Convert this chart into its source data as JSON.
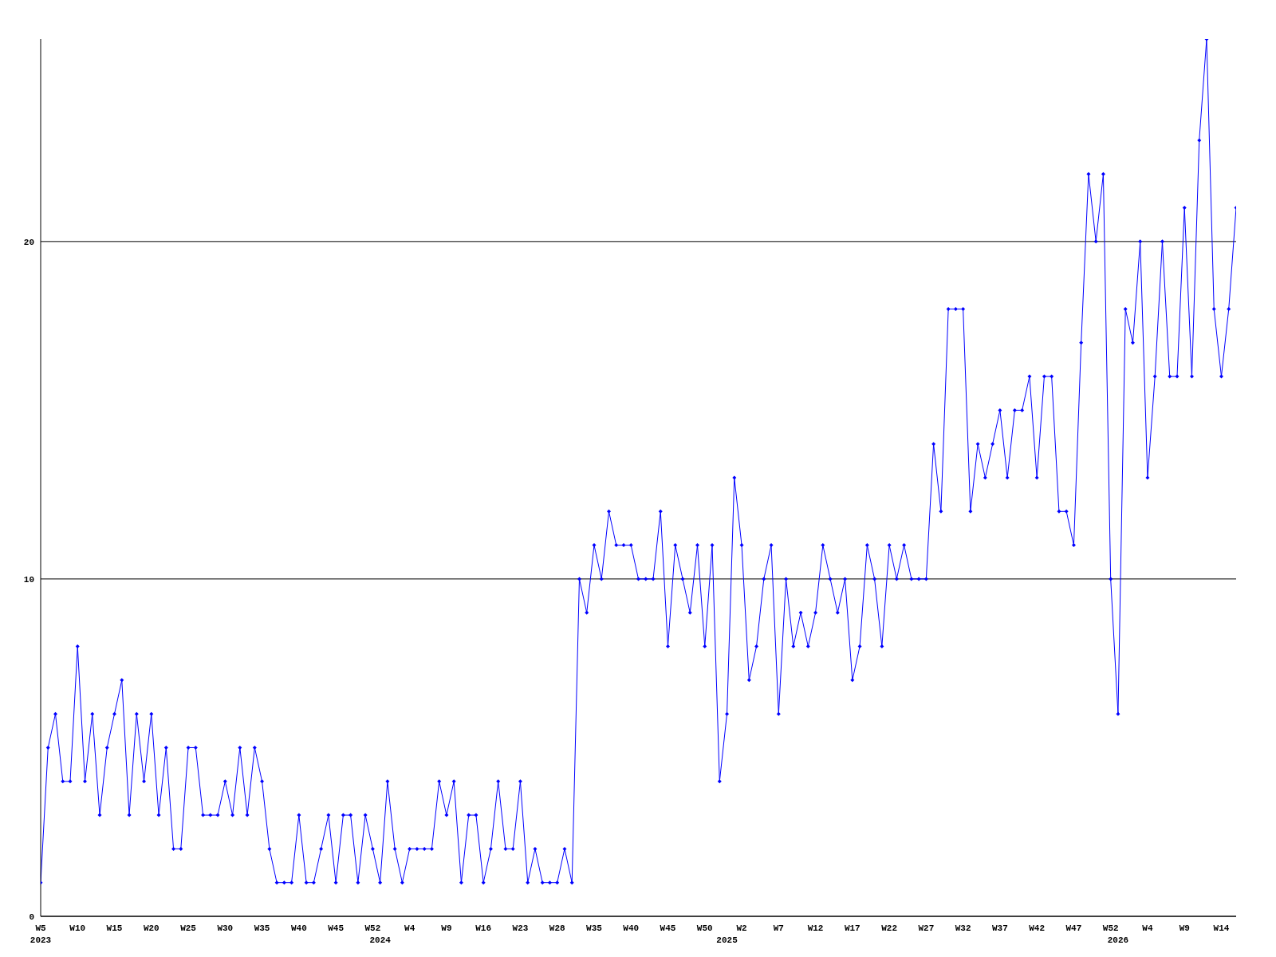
{
  "chart_data": {
    "type": "line",
    "categories": [
      "W5\n2023",
      null,
      null,
      null,
      null,
      "W10",
      null,
      null,
      null,
      null,
      "W15",
      null,
      null,
      null,
      null,
      "W20",
      null,
      null,
      null,
      null,
      "W25",
      null,
      null,
      null,
      null,
      "W30",
      null,
      null,
      null,
      null,
      "W35",
      null,
      null,
      null,
      null,
      "W40",
      null,
      null,
      null,
      null,
      "W45",
      null,
      null,
      null,
      null,
      "W52",
      "\n2024",
      null,
      null,
      null,
      "W4",
      null,
      null,
      null,
      null,
      "W9",
      null,
      null,
      null,
      null,
      "W16",
      null,
      null,
      null,
      null,
      "W23",
      null,
      null,
      null,
      null,
      "W28",
      null,
      null,
      null,
      null,
      "W35",
      null,
      null,
      null,
      null,
      "W40",
      null,
      null,
      null,
      null,
      "W45",
      null,
      null,
      null,
      null,
      "W50",
      null,
      null,
      "\n2025",
      null,
      "W2",
      null,
      null,
      null,
      null,
      "W7",
      null,
      null,
      null,
      null,
      "W12",
      null,
      null,
      null,
      null,
      "W17",
      null,
      null,
      null,
      null,
      "W22",
      null,
      null,
      null,
      null,
      "W27",
      null,
      null,
      null,
      null,
      "W32",
      null,
      null,
      null,
      null,
      "W37",
      null,
      null,
      null,
      null,
      "W42",
      null,
      null,
      null,
      null,
      "W47",
      null,
      null,
      null,
      null,
      "W52",
      "\n2026",
      null,
      null,
      null,
      "W4",
      null,
      null,
      null,
      null,
      "W9",
      null,
      null,
      null,
      null,
      "W14",
      null,
      null
    ],
    "series": [
      {
        "color": "#0000ff",
        "values": [
          1,
          5,
          6,
          4,
          4,
          8,
          4,
          6,
          3,
          5,
          6,
          7,
          3,
          6,
          4,
          6,
          3,
          5,
          2,
          2,
          5,
          5,
          3,
          3,
          3,
          4,
          3,
          5,
          3,
          5,
          4,
          2,
          1,
          1,
          1,
          3,
          1,
          1,
          2,
          3,
          1,
          3,
          3,
          1,
          3,
          2,
          1,
          4,
          2,
          1,
          2,
          2,
          2,
          2,
          4,
          3,
          4,
          1,
          3,
          3,
          1,
          2,
          4,
          2,
          2,
          4,
          1,
          2,
          1,
          1,
          1,
          2,
          1,
          10,
          9,
          11,
          10,
          12,
          11,
          11,
          11,
          10,
          10,
          10,
          12,
          8,
          11,
          10,
          9,
          11,
          8,
          11,
          4,
          6,
          13,
          11,
          7,
          8,
          10,
          11,
          6,
          10,
          8,
          9,
          8,
          9,
          11,
          10,
          9,
          10,
          7,
          8,
          11,
          10,
          8,
          11,
          10,
          11,
          10,
          10,
          10,
          14,
          12,
          18,
          18,
          18,
          12,
          14,
          13,
          14,
          15,
          13,
          15,
          15,
          16,
          13,
          16,
          16,
          12,
          12,
          11,
          17,
          22,
          20,
          22,
          10,
          6,
          18,
          17,
          20,
          13,
          16,
          20,
          16,
          16,
          21,
          16,
          23,
          26,
          18,
          16,
          18,
          21
        ]
      }
    ],
    "ylim": [
      0,
      26
    ],
    "yticks": [
      0,
      10,
      20
    ],
    "grid": "y",
    "marker": "diamond"
  }
}
